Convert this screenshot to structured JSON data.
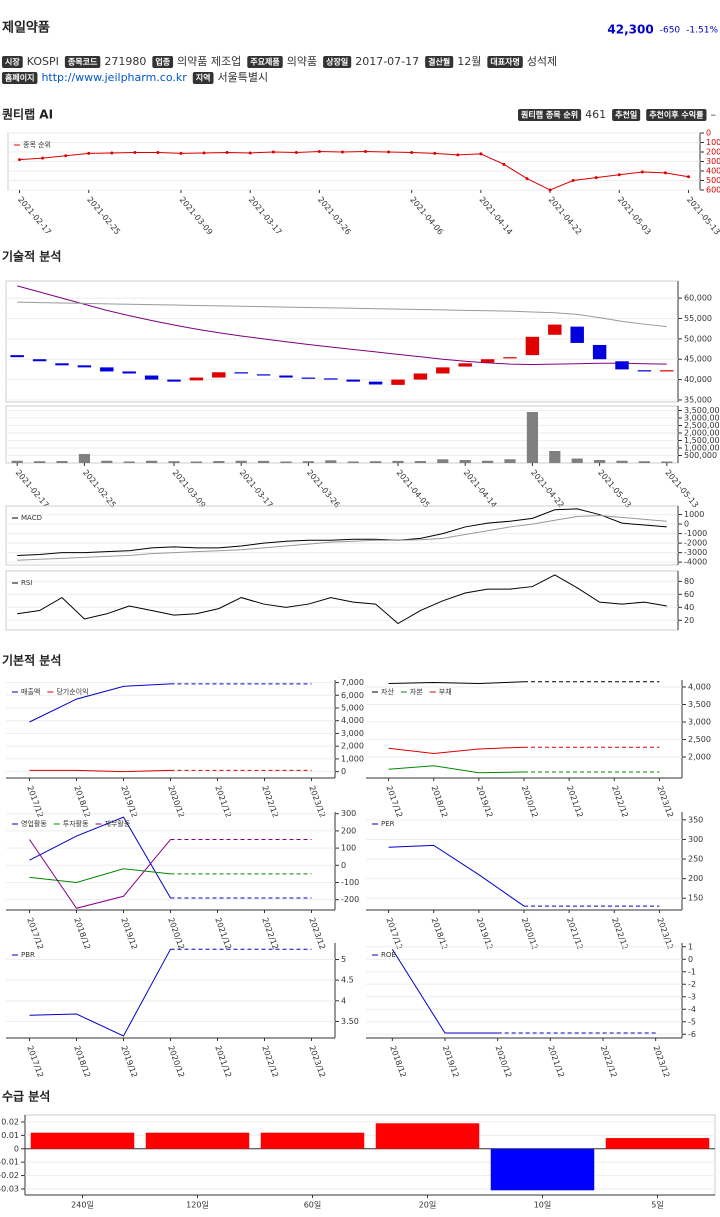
{
  "header": {
    "name": "제일약품",
    "price": "42,300",
    "change": "-650",
    "change_rate": "-1.51%"
  },
  "info": [
    {
      "label": "시장",
      "value": "KOSPI"
    },
    {
      "label": "종목코드",
      "value": "271980"
    },
    {
      "label": "업종",
      "value": "의약품 제조업"
    },
    {
      "label": "주요제품",
      "value": "의약품"
    },
    {
      "label": "상장일",
      "value": "2017-07-17"
    },
    {
      "label": "결산월",
      "value": "12월"
    },
    {
      "label": "대표자명",
      "value": "성석제"
    },
    {
      "label": "홈페이지",
      "value": "http://www.jeilpharm.co.kr"
    },
    {
      "label": "지역",
      "value": "서울특별시"
    }
  ],
  "ai": {
    "badges": [
      {
        "label": "퀀티랩 종목 순위",
        "value": "461"
      },
      {
        "label": "추천일"
      },
      {
        "label": "추천이후 수익률",
        "value": "–"
      }
    ]
  },
  "sections": [
    "퀀티랩 AI",
    "기술적 분석",
    "기본적 분석",
    "수급 분석"
  ],
  "chart_data": [
    {
      "type": "line",
      "categories": [
        "2021-02-17",
        null,
        null,
        "2021-02-25",
        null,
        null,
        null,
        "2021-03-09",
        null,
        null,
        "2021-03-17",
        null,
        null,
        "2021-03-26",
        null,
        null,
        null,
        "2021-04-06",
        null,
        null,
        "2021-04-14",
        null,
        null,
        "2021-04-22",
        null,
        null,
        "2021-05-03",
        null,
        null,
        "2021-05-13"
      ],
      "series": [
        {
          "name": "종목 순위",
          "color": "#dd0000",
          "values": [
            280,
            265,
            240,
            215,
            210,
            205,
            205,
            215,
            210,
            205,
            210,
            200,
            205,
            195,
            200,
            195,
            200,
            205,
            215,
            230,
            220,
            330,
            480,
            600,
            500,
            470,
            440,
            410,
            420,
            460
          ]
        }
      ],
      "ylim": [
        0,
        600
      ],
      "yticks": [
        0,
        100,
        200,
        300,
        400,
        500,
        600
      ],
      "y_inverted": true,
      "markers": true,
      "grid": true,
      "tick_color": "#dd0000"
    },
    {
      "type": "candlestick",
      "categories": [
        "2021-02-17",
        null,
        null,
        "2021-02-25",
        null,
        null,
        null,
        "2021-03-09",
        null,
        null,
        "2021-03-17",
        null,
        null,
        "2021-03-26",
        null,
        null,
        null,
        "2021-04-05",
        null,
        null,
        "2021-04-14",
        null,
        null,
        "2021-04-22",
        null,
        null,
        "2021-05-03",
        null,
        null,
        "2021-05-13"
      ],
      "open": [
        46000,
        45000,
        44000,
        43500,
        43000,
        42000,
        41000,
        40000,
        39800,
        40500,
        41800,
        41300,
        41000,
        40500,
        40300,
        40000,
        39500,
        38700,
        40000,
        41500,
        43200,
        44200,
        45200,
        46000,
        51000,
        53000,
        48500,
        44500,
        42300,
        42000
      ],
      "close": [
        45500,
        44500,
        43500,
        43000,
        42000,
        41500,
        40000,
        39500,
        40500,
        41800,
        41500,
        41000,
        40500,
        40200,
        40000,
        39500,
        38800,
        40000,
        41500,
        43000,
        44000,
        45000,
        45500,
        50500,
        53500,
        49000,
        45000,
        42500,
        42000,
        42300
      ],
      "color_up": "#e00000",
      "color_down": "#0000dd",
      "lines": [
        {
          "color": "#800080",
          "values": [
            63000,
            61500,
            60000,
            58500,
            57000,
            55700,
            54500,
            53400,
            52400,
            51500,
            50700,
            50000,
            49300,
            48600,
            48000,
            47400,
            46800,
            46200,
            45600,
            45000,
            44500,
            44100,
            43800,
            43700,
            43800,
            43900,
            44000,
            44000,
            43900,
            43800
          ]
        },
        {
          "color": "#999999",
          "values": [
            59000,
            58900,
            58800,
            58700,
            58600,
            58500,
            58400,
            58300,
            58200,
            58100,
            58000,
            57900,
            57800,
            57700,
            57600,
            57500,
            57400,
            57300,
            57200,
            57100,
            57000,
            56900,
            56800,
            56600,
            56400,
            56000,
            55200,
            54300,
            53600,
            53000
          ]
        }
      ],
      "ylim": [
        34500,
        64200
      ],
      "yticks": [
        {
          "value": 35000,
          "label": "35,000"
        },
        {
          "value": 40000,
          "label": "40,000"
        },
        {
          "value": 45000,
          "label": "45,000"
        },
        {
          "value": 50000,
          "label": "50,000"
        },
        {
          "value": 55000,
          "label": "55,000"
        },
        {
          "value": 60000,
          "label": "60,000"
        }
      ],
      "grid": true
    },
    {
      "type": "bar",
      "values": [
        150000,
        120000,
        130000,
        600000,
        150000,
        100000,
        150000,
        120000,
        100000,
        130000,
        150000,
        140000,
        100000,
        120000,
        180000,
        100000,
        120000,
        140000,
        130000,
        250000,
        200000,
        150000,
        250000,
        3400000,
        800000,
        300000,
        200000,
        150000,
        120000,
        100000
      ],
      "color": "#808080",
      "ylim": [
        0,
        3800000
      ],
      "yticks": [
        {
          "value": 500000,
          "label": "500,000"
        },
        {
          "value": 1000000,
          "label": "1,000,000"
        },
        {
          "value": 1500000,
          "label": "1,500,000"
        },
        {
          "value": 2000000,
          "label": "2,000,000"
        },
        {
          "value": 2500000,
          "label": "2,500,000"
        },
        {
          "value": 3000000,
          "label": "3,000,000"
        },
        {
          "value": 3500000,
          "label": "3,500,000"
        }
      ],
      "grid": true
    },
    {
      "type": "line",
      "series": [
        {
          "name": "MACD",
          "color": "#000000",
          "values": [
            -3300,
            -3200,
            -3000,
            -3000,
            -2900,
            -2800,
            -2500,
            -2400,
            -2500,
            -2500,
            -2300,
            -2000,
            -1800,
            -1700,
            -1700,
            -1600,
            -1600,
            -1700,
            -1500,
            -1000,
            -300,
            100,
            300,
            600,
            1500,
            1600,
            1000,
            100,
            -100,
            -300
          ]
        },
        {
          "color": "#999999",
          "values": [
            -3800,
            -3700,
            -3600,
            -3500,
            -3400,
            -3300,
            -3100,
            -3000,
            -2900,
            -2800,
            -2700,
            -2500,
            -2300,
            -2100,
            -1900,
            -1800,
            -1700,
            -1700,
            -1650,
            -1500,
            -1100,
            -700,
            -300,
            0,
            400,
            800,
            900,
            700,
            500,
            300
          ]
        }
      ],
      "ylim": [
        -4300,
        1900
      ],
      "yticks": [
        -4000,
        -3000,
        -2000,
        -1000,
        0,
        1000
      ],
      "grid": true
    },
    {
      "type": "line",
      "series": [
        {
          "name": "RSI",
          "color": "#000000",
          "values": [
            30,
            35,
            55,
            22,
            30,
            42,
            35,
            28,
            30,
            38,
            55,
            45,
            40,
            45,
            55,
            48,
            45,
            15,
            35,
            50,
            62,
            68,
            68,
            72,
            90,
            70,
            48,
            45,
            48,
            42
          ]
        }
      ],
      "ylim": [
        5,
        96
      ],
      "yticks": [
        20,
        40,
        60,
        80
      ],
      "grid": true
    },
    {
      "type": "line",
      "categories": [
        "2017/12",
        "2018/12",
        "2019/12",
        "2020/12",
        "2021/12",
        "2022/12",
        "2023/12"
      ],
      "series": [
        {
          "name": "매출액",
          "color": "#0000cc",
          "values": [
            3900,
            5700,
            6700,
            6900,
            6900,
            6900,
            6900
          ]
        },
        {
          "name": "당기순이익",
          "color": "#dd0000",
          "values": [
            100,
            100,
            0,
            100,
            100,
            100,
            100
          ]
        }
      ],
      "dashed_from": 3,
      "ylim": [
        -500,
        7200
      ],
      "yticks": [
        0,
        {
          "value": 1000,
          "label": "1,000"
        },
        {
          "value": 2000,
          "label": "2,000"
        },
        {
          "value": 3000,
          "label": "3,000"
        },
        {
          "value": 4000,
          "label": "4,000"
        },
        {
          "value": 5000,
          "label": "5,000"
        },
        {
          "value": 6000,
          "label": "6,000"
        },
        {
          "value": 7000,
          "label": "7,000"
        }
      ],
      "grid": true
    },
    {
      "type": "line",
      "categories": [
        "2017/12",
        "2018/12",
        "2019/12",
        "2020/12",
        "2021/12",
        "2022/12",
        "2023/12"
      ],
      "series": [
        {
          "name": "자산",
          "color": "#000000",
          "values": [
            4100,
            4130,
            4100,
            4150,
            4150,
            4150,
            4150
          ]
        },
        {
          "name": "자본",
          "color": "#008800",
          "values": [
            1650,
            1750,
            1550,
            1570,
            1570,
            1570,
            1570
          ]
        },
        {
          "name": "부채",
          "color": "#dd0000",
          "values": [
            2250,
            2100,
            2230,
            2280,
            2280,
            2280,
            2280
          ]
        }
      ],
      "dashed_from": 3,
      "ylim": [
        1400,
        4200
      ],
      "yticks": [
        {
          "value": 2000,
          "label": "2,000"
        },
        {
          "value": 2500,
          "label": "2,500"
        },
        {
          "value": 3000,
          "label": "3,000"
        },
        {
          "value": 3500,
          "label": "3,500"
        },
        {
          "value": 4000,
          "label": "4,000"
        }
      ],
      "grid": true
    },
    {
      "type": "line",
      "categories": [
        "2017/12",
        "2018/12",
        "2019/12",
        "2020/12",
        "2021/12",
        "2022/12",
        "2023/12"
      ],
      "series": [
        {
          "name": "영업활동",
          "color": "#0000cc",
          "values": [
            30,
            170,
            280,
            -190,
            -190,
            -190,
            -190
          ]
        },
        {
          "name": "투자활동",
          "color": "#008800",
          "values": [
            -70,
            -100,
            -20,
            -50,
            -50,
            -50,
            -50
          ]
        },
        {
          "name": "재무활동",
          "color": "#880088",
          "values": [
            150,
            -250,
            -180,
            150,
            150,
            150,
            150
          ]
        }
      ],
      "dashed_from": 3,
      "ylim": [
        -260,
        310
      ],
      "yticks": [
        -200,
        -100,
        0,
        100,
        200,
        300
      ],
      "grid": true
    },
    {
      "type": "line",
      "categories": [
        "2017/12",
        "2018/12",
        "2019/12",
        "2020/12",
        "2021/12",
        "2022/12",
        "2023/12"
      ],
      "series": [
        {
          "name": "PER",
          "color": "#0000cc",
          "values": [
            280,
            285,
            210,
            130,
            130,
            130,
            130
          ]
        }
      ],
      "dashed_from": 3,
      "ylim": [
        120,
        370
      ],
      "yticks": [
        150,
        200,
        250,
        300,
        350
      ],
      "grid": true
    },
    {
      "type": "line",
      "categories": [
        "2017/12",
        "2018/12",
        "2019/12",
        "2020/12",
        "2021/12",
        "2022/12",
        "2023/12"
      ],
      "series": [
        {
          "name": "PBR",
          "color": "#0000cc",
          "values": [
            3.65,
            3.68,
            3.15,
            5.25,
            5.25,
            5.25,
            5.25
          ]
        }
      ],
      "dashed_from": 3,
      "ylim": [
        3.1,
        5.4
      ],
      "yticks": [
        {
          "value": 3.5,
          "label": "3.50"
        },
        4,
        4.5,
        5
      ],
      "grid": true
    },
    {
      "type": "line",
      "categories": [
        "2018/12",
        "2019/12",
        "2020/12",
        "2021/12",
        "2022/12",
        "2023/12"
      ],
      "series": [
        {
          "name": "ROE",
          "color": "#0000cc",
          "values": [
            0.8,
            -5.9,
            -5.9,
            -5.9,
            -5.9,
            -5.9
          ]
        }
      ],
      "dashed_from": 2,
      "ylim": [
        -6.3,
        1.3
      ],
      "yticks": [
        -6,
        -5,
        -4,
        -3,
        -2,
        -1,
        0,
        1
      ],
      "grid": true
    },
    {
      "type": "bar",
      "categories": [
        "240일",
        "120일",
        "60일",
        "20일",
        "10일",
        "5일"
      ],
      "values": [
        0.012,
        0.012,
        0.012,
        0.019,
        -0.031,
        0.008
      ],
      "positive_color": "#ff0000",
      "negative_color": "#0000ff",
      "ylim": [
        -0.0345,
        0.0252
      ],
      "yticks": [
        -0.03,
        -0.02,
        -0.01,
        0,
        0.01,
        0.02
      ],
      "grid": true,
      "axis_side": "left"
    }
  ]
}
